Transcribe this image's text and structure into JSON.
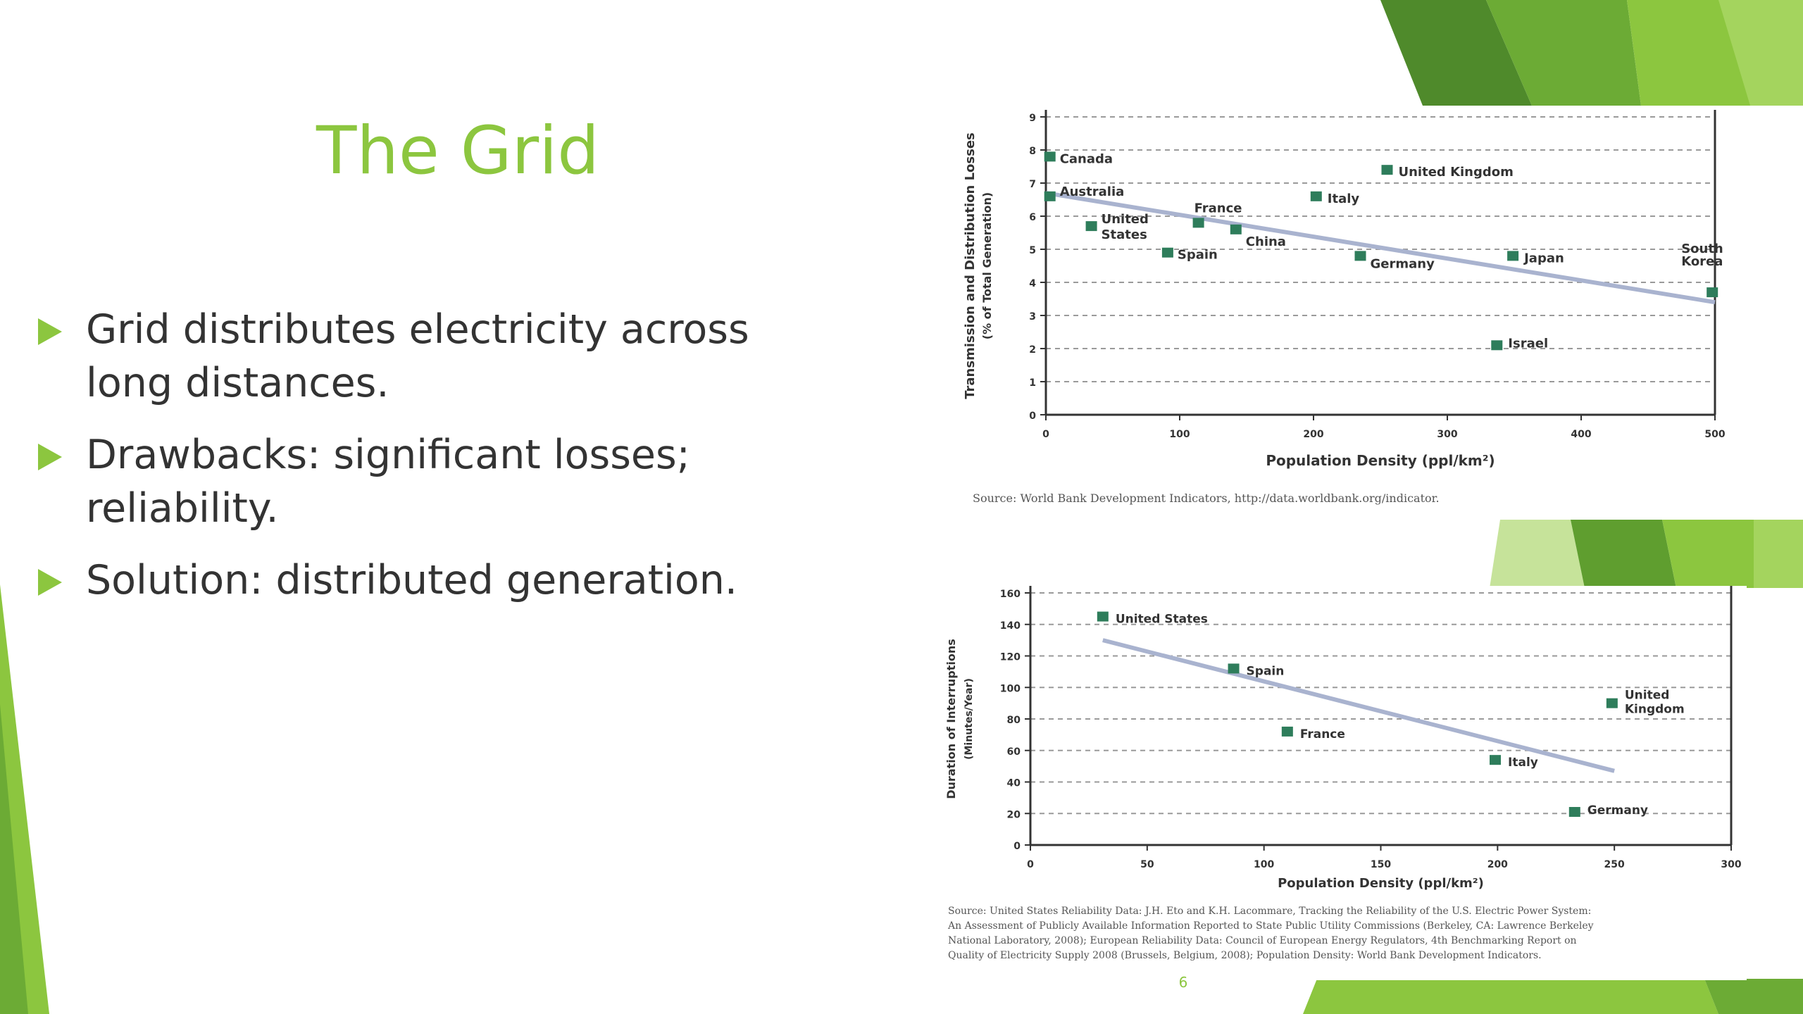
{
  "slide": {
    "title": "The Grid",
    "bullets": [
      "Grid distributes electricity across long distances.",
      "Drawbacks: significant losses; reliability.",
      "Solution: distributed generation."
    ],
    "page_number": "6",
    "colors": {
      "accent": "#8cc63f",
      "accent_dark": "#5f9e2f",
      "marker": "#2e7d5b",
      "trend": "#a9b3cf"
    }
  },
  "chart_data": [
    {
      "type": "scatter",
      "title": "",
      "xlabel": "Population Density (ppl/km²)",
      "ylabel": "Transmission and Distribution Losses",
      "ylabel2": "(% of Total Generation)",
      "xlim": [
        0,
        500
      ],
      "ylim": [
        0,
        9
      ],
      "xticks": [
        "0",
        "100",
        "200",
        "300",
        "400",
        "500"
      ],
      "yticks": [
        "0",
        "1",
        "2",
        "3",
        "4",
        "5",
        "6",
        "7",
        "8",
        "9"
      ],
      "grid": true,
      "points": [
        {
          "label": "Canada",
          "x": 3,
          "y": 7.8
        },
        {
          "label": "Australia",
          "x": 3,
          "y": 6.6
        },
        {
          "label": "United States",
          "x": 34,
          "y": 5.7
        },
        {
          "label": "Spain",
          "x": 91,
          "y": 4.9
        },
        {
          "label": "France",
          "x": 114,
          "y": 5.8
        },
        {
          "label": "China",
          "x": 142,
          "y": 5.6
        },
        {
          "label": "Italy",
          "x": 202,
          "y": 6.6
        },
        {
          "label": "United Kingdom",
          "x": 255,
          "y": 7.4
        },
        {
          "label": "Germany",
          "x": 235,
          "y": 4.8
        },
        {
          "label": "Japan",
          "x": 349,
          "y": 4.8
        },
        {
          "label": "Israel",
          "x": 337,
          "y": 2.1
        },
        {
          "label": "South Korea",
          "x": 498,
          "y": 3.7
        }
      ],
      "trendline": {
        "x": [
          0,
          500
        ],
        "y": [
          6.7,
          3.4
        ]
      },
      "source": "Source: World Bank Development Indicators, http://data.worldbank.org/indicator."
    },
    {
      "type": "scatter",
      "title": "",
      "xlabel": "Population Density (ppl/km²)",
      "ylabel": "Duration of Interruptions",
      "ylabel2": "(Minutes/Year)",
      "xlim": [
        0,
        300
      ],
      "ylim": [
        0,
        160
      ],
      "xticks": [
        "0",
        "50",
        "100",
        "150",
        "200",
        "250",
        "300"
      ],
      "yticks": [
        "0",
        "20",
        "40",
        "60",
        "80",
        "100",
        "120",
        "140",
        "160"
      ],
      "grid": true,
      "points": [
        {
          "label": "United States",
          "x": 31,
          "y": 145
        },
        {
          "label": "Spain",
          "x": 87,
          "y": 112
        },
        {
          "label": "France",
          "x": 110,
          "y": 72
        },
        {
          "label": "Italy",
          "x": 199,
          "y": 54
        },
        {
          "label": "United Kingdom",
          "x": 249,
          "y": 90
        },
        {
          "label": "Germany",
          "x": 233,
          "y": 21
        }
      ],
      "trendline": {
        "x": [
          31,
          250
        ],
        "y": [
          130,
          47
        ]
      },
      "source": [
        "Source: United States Reliability Data: J.H. Eto and K.H. Lacommare, Tracking the Reliability of the U.S. Electric Power System:",
        "An Assessment of Publicly Available Information Reported to State Public Utility Commissions (Berkeley, CA: Lawrence Berkeley",
        "National Laboratory, 2008); European Reliability Data: Council of European Energy Regulators, 4th Benchmarking Report on",
        "Quality of Electricity Supply 2008 (Brussels, Belgium, 2008); Population Density: World Bank Development Indicators."
      ]
    }
  ]
}
